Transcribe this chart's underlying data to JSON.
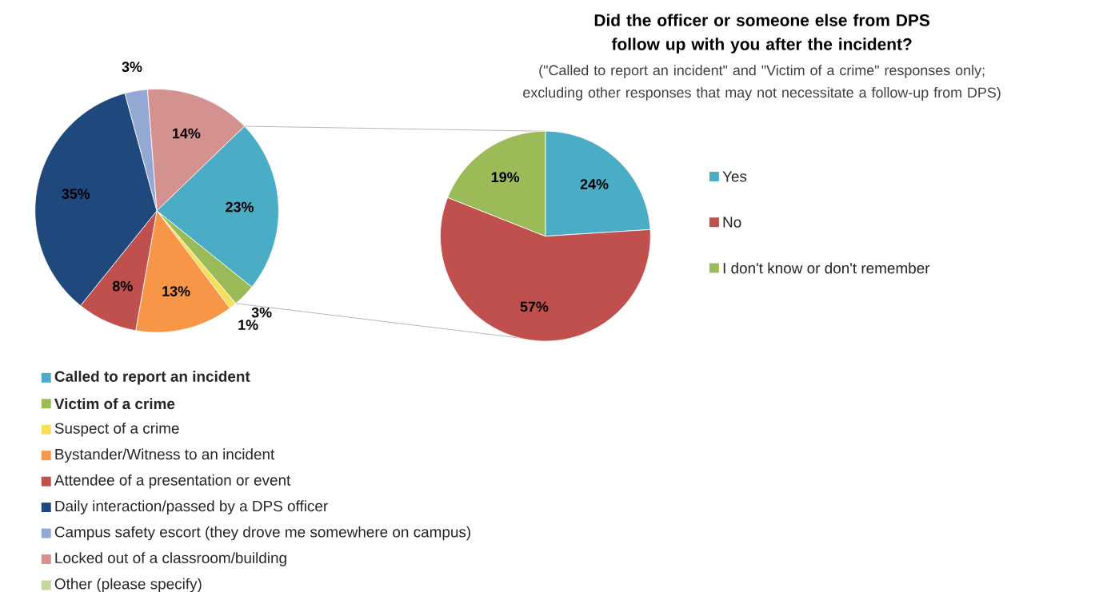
{
  "chart_data": [
    {
      "type": "pie",
      "categories": [
        "Called to report an incident",
        "Victim of a crime",
        "Suspect of a crime",
        "Bystander/Witness to an incident",
        "Attendee of a presentation or event",
        "Daily interaction/passed by a DPS officer",
        "Campus safety escort (they drove me somewhere on campus)",
        "Locked out of a classroom/building",
        "Other (please specify)"
      ],
      "values": [
        23,
        3,
        1,
        13,
        8,
        35,
        3,
        14,
        0
      ],
      "value_labels": [
        "23%",
        "3%",
        "1%",
        "13%",
        "8%",
        "35%",
        "3%",
        "14%",
        null
      ],
      "colors": [
        "#4bacc6",
        "#9bbb59",
        "#f9de5c",
        "#f79646",
        "#c0504d",
        "#1f497d",
        "#93a9d4",
        "#d39190",
        "#c3d69b"
      ],
      "legend": "bottom"
    },
    {
      "type": "pie",
      "title": "Did the officer or someone else from DPS follow up with you after the incident?",
      "subtitle": "(\"Called to report an incident\" and \"Victim of a crime\" responses only; excluding other responses that may not necessitate a follow-up from DPS)",
      "categories": [
        "Yes",
        "No",
        "I don't know or don't remember"
      ],
      "values": [
        24,
        57,
        19
      ],
      "value_labels": [
        "24%",
        "57%",
        "19%"
      ],
      "colors": [
        "#4bacc6",
        "#c0504d",
        "#9bbb59"
      ],
      "legend": "right"
    }
  ]
}
